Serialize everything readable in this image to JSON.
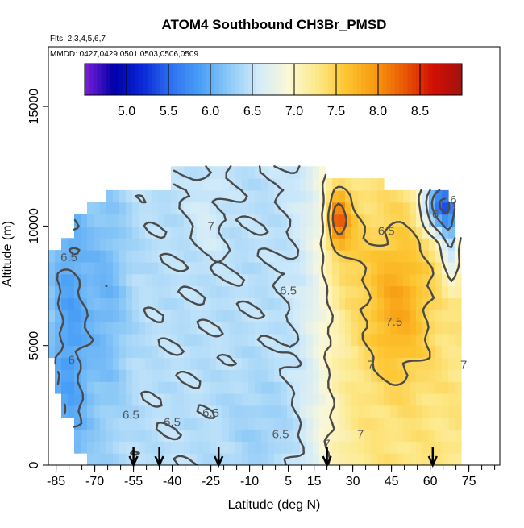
{
  "chart_data": {
    "type": "heatmap",
    "title": "ATOM4 Southbound CH3Br_PMSD",
    "flights_note": "Flts: 2,3,4,5,6,7",
    "dates_note": "MMDD: 0427,0429,0501,0503,0506,0509",
    "xlabel": "Latitude (deg N)",
    "ylabel": "Altitude (m)",
    "xlim": [
      -88,
      87
    ],
    "ylim": [
      0,
      17500
    ],
    "x_ticks": [
      -85,
      -70,
      -55,
      -40,
      -25,
      -10,
      5,
      15,
      30,
      45,
      60,
      75
    ],
    "y_ticks": [
      0,
      5000,
      10000,
      15000
    ],
    "colorbar": {
      "range": [
        4.5,
        9.0
      ],
      "ticks": [
        5.0,
        5.5,
        6.0,
        6.5,
        7.0,
        7.5,
        8.0,
        8.5
      ],
      "tick_labels": [
        "5.0",
        "5.5",
        "6.0",
        "6.5",
        "7.0",
        "7.5",
        "8.0",
        "8.5"
      ]
    },
    "colors": [
      "#7a1fd6",
      "#0000a8",
      "#0a28d8",
      "#2f72ef",
      "#4aa0f6",
      "#8ecaf7",
      "#d2ebfa",
      "#fbf8d8",
      "#fde98a",
      "#fdc531",
      "#f79a10",
      "#ea5a04",
      "#d10f03",
      "#a31210"
    ],
    "contour_labels": [
      {
        "text": "7",
        "lat": -25,
        "alt": 10000
      },
      {
        "text": "6.5",
        "lat": -80,
        "alt": 8700
      },
      {
        "text": "6.5",
        "lat": 5,
        "alt": 7300
      },
      {
        "text": "6.5",
        "lat": 43,
        "alt": 9800
      },
      {
        "text": "6",
        "lat": 62,
        "alt": 10500
      },
      {
        "text": "6",
        "lat": 69,
        "alt": 11100
      },
      {
        "text": "7.5",
        "lat": 46,
        "alt": 6000
      },
      {
        "text": "6",
        "lat": -79,
        "alt": 4400
      },
      {
        "text": "7",
        "lat": 37,
        "alt": 4200
      },
      {
        "text": "7",
        "lat": 73,
        "alt": 4200
      },
      {
        "text": "6.5",
        "lat": -56,
        "alt": 2100
      },
      {
        "text": "6.5",
        "lat": -40,
        "alt": 1800
      },
      {
        "text": "6.5",
        "lat": -25,
        "alt": 2200
      },
      {
        "text": "6.5",
        "lat": 2,
        "alt": 1300
      },
      {
        "text": "7",
        "lat": 33,
        "alt": 1300
      },
      {
        "text": "7",
        "lat": 20,
        "alt": 900
      }
    ],
    "profile_arrows_lat": [
      -55,
      -45,
      -22,
      20,
      61
    ]
  }
}
